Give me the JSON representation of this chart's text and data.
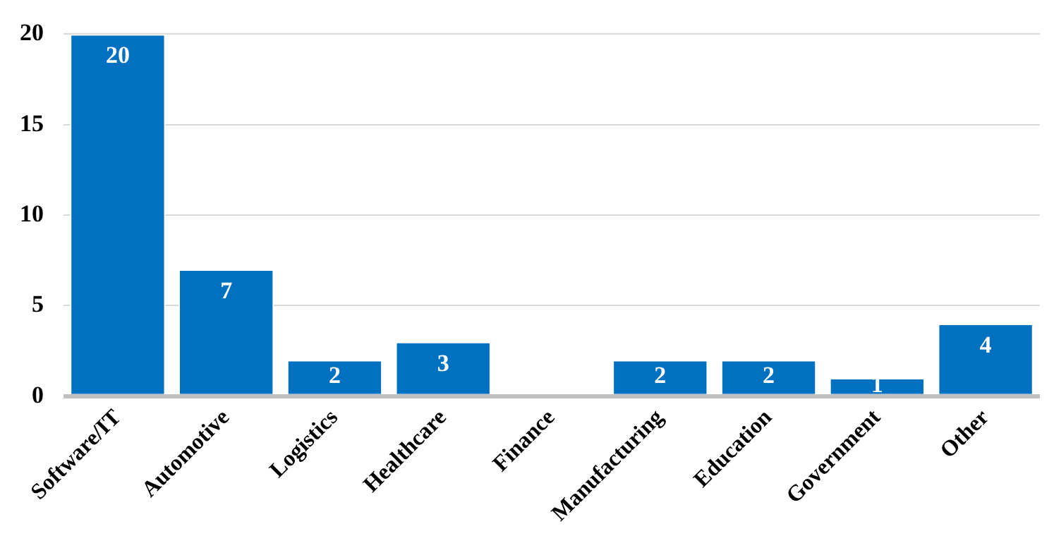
{
  "chart_data": {
    "type": "bar",
    "categories": [
      "Software/IT",
      "Automotive",
      "Logistics",
      "Healthcare",
      "Finance",
      "Manufacturing",
      "Education",
      "Government",
      "Other"
    ],
    "values": [
      20,
      7,
      2,
      3,
      0,
      2,
      2,
      1,
      4
    ],
    "value_labels": [
      "20",
      "7",
      "2",
      "3",
      null,
      "2",
      "2",
      "1",
      "4"
    ],
    "color": "#0070c0",
    "ylim": [
      0,
      20
    ],
    "yticks": [
      0,
      5,
      10,
      15,
      20
    ],
    "grid": "y",
    "legend": false
  }
}
